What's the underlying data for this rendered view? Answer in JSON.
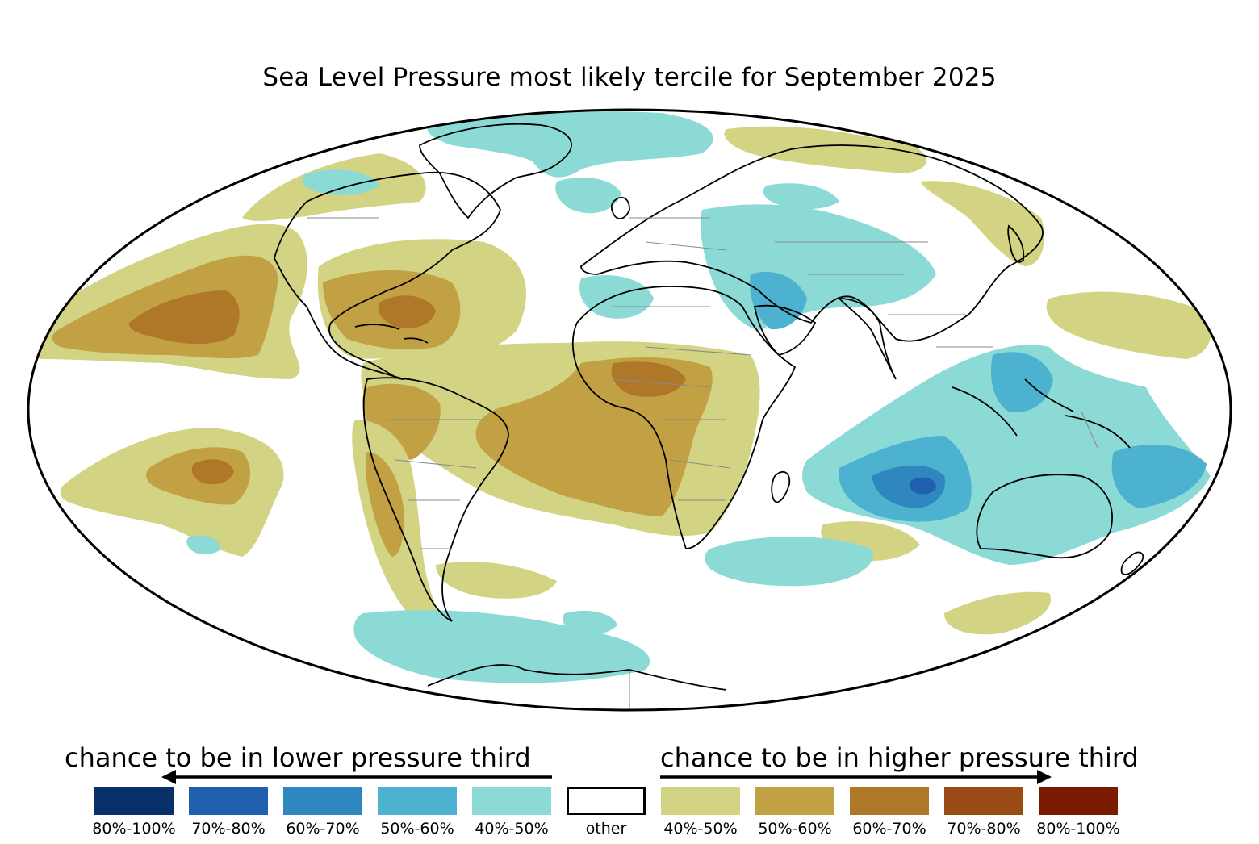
{
  "title": "Sea Level Pressure most likely tercile for September 2025",
  "legend": {
    "lower_heading": "chance to be in lower pressure third",
    "higher_heading": "chance to be in higher pressure third",
    "items": [
      {
        "label": "80%-100%",
        "color": "#08306b"
      },
      {
        "label": "70%-80%",
        "color": "#1f5fad"
      },
      {
        "label": "60%-70%",
        "color": "#2e87be"
      },
      {
        "label": "50%-60%",
        "color": "#4db2d0"
      },
      {
        "label": "40%-50%",
        "color": "#8cdad6"
      },
      {
        "label": "other",
        "color": "#ffffff"
      },
      {
        "label": "40%-50%",
        "color": "#d3d384"
      },
      {
        "label": "50%-60%",
        "color": "#c2a144"
      },
      {
        "label": "60%-70%",
        "color": "#ae7828"
      },
      {
        "label": "70%-80%",
        "color": "#9a4a15"
      },
      {
        "label": "80%-100%",
        "color": "#7a1a00"
      }
    ]
  },
  "map": {
    "projection": "Mollweide",
    "coastline_color": "#000000",
    "border_color": "#8a8a8a"
  }
}
